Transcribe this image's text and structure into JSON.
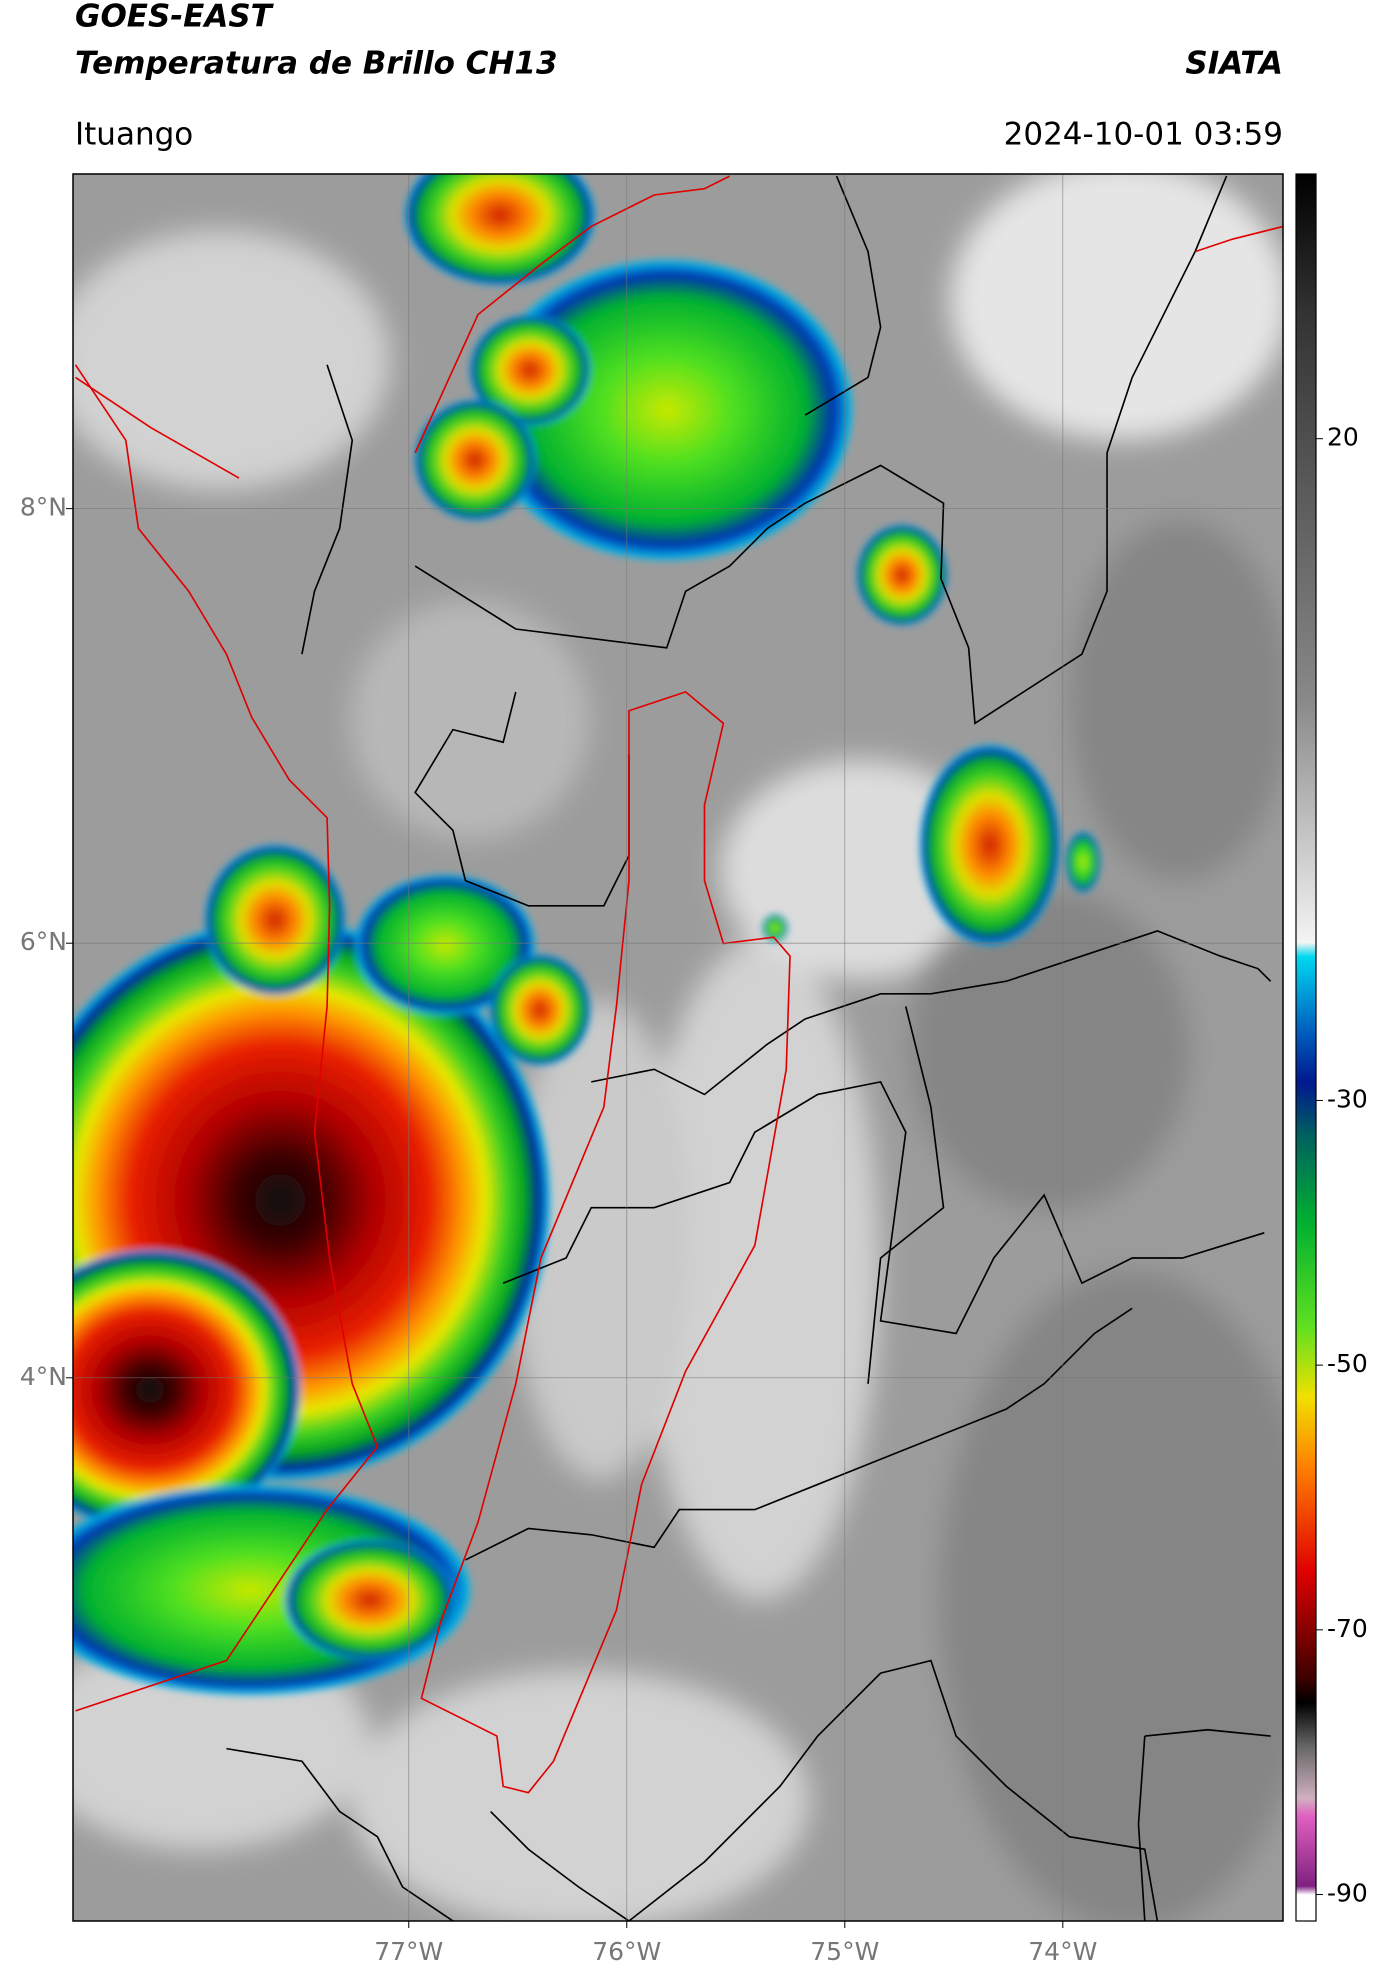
{
  "header": {
    "title": "GOES-EAST",
    "subtitle": "Temperatura de Brillo CH13",
    "source": "SIATA",
    "location": "Ituango",
    "datetime": "2024-10-01 03:59"
  },
  "map": {
    "xlim": [
      -78.54,
      -72.99
    ],
    "ylim": [
      1.5,
      9.54
    ],
    "xticks": [
      {
        "value": -77,
        "label": "77°W"
      },
      {
        "value": -76,
        "label": "76°W"
      },
      {
        "value": -75,
        "label": "75°W"
      },
      {
        "value": -74,
        "label": "74°W"
      }
    ],
    "yticks": [
      {
        "value": 8,
        "label": "8°N"
      },
      {
        "value": 6,
        "label": "6°N"
      },
      {
        "value": 4,
        "label": "4°N"
      }
    ]
  },
  "colorbar": {
    "lim": [
      -92,
      40
    ],
    "ticks": [
      20,
      -30,
      -50,
      -70,
      -90
    ]
  }
}
